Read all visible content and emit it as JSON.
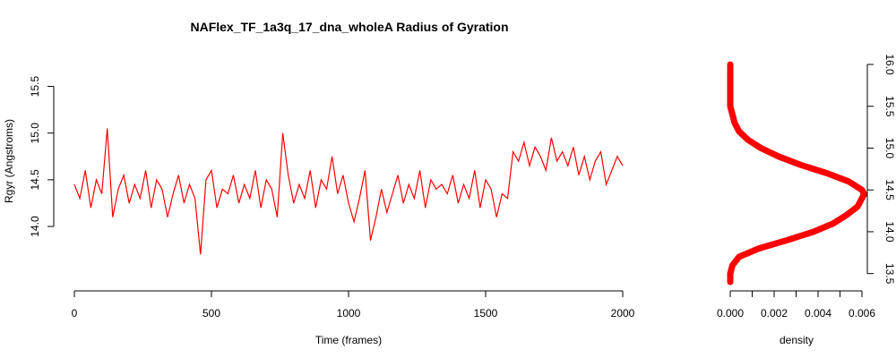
{
  "chart_data": [
    {
      "type": "line",
      "title": "NAFlex_TF_1a3q_17_dna_wholeA Radius of Gyration",
      "xlabel": "Time (frames)",
      "ylabel": "Rgyr (Angstroms)",
      "xlim": [
        0,
        2000
      ],
      "ylim": [
        13.55,
        15.85
      ],
      "x_ticks": [
        "0",
        "500",
        "1000",
        "1500",
        "2000"
      ],
      "y_ticks": [
        "14.0",
        "14.5",
        "15.0",
        "15.5"
      ],
      "line_color": "#ff0000",
      "grid": false,
      "legend": "none",
      "series": [
        {
          "x": [
            0,
            20,
            40,
            60,
            80,
            100,
            120,
            140,
            160,
            180,
            200,
            220,
            240,
            260,
            280,
            300,
            320,
            340,
            360,
            380,
            400,
            420,
            440,
            460,
            480,
            500,
            520,
            540,
            560,
            580,
            600,
            620,
            640,
            660,
            680,
            700,
            720,
            740,
            760,
            780,
            800,
            820,
            840,
            860,
            880,
            900,
            920,
            940,
            960,
            980,
            1000,
            1020,
            1040,
            1060,
            1080,
            1100,
            1120,
            1140,
            1160,
            1180,
            1200,
            1220,
            1240,
            1260,
            1280,
            1300,
            1320,
            1340,
            1360,
            1380,
            1400,
            1420,
            1440,
            1460,
            1480,
            1500,
            1520,
            1540,
            1560,
            1580,
            1600,
            1620,
            1640,
            1660,
            1680,
            1700,
            1720,
            1740,
            1760,
            1780,
            1800,
            1820,
            1840,
            1860,
            1880,
            1900,
            1920,
            1940,
            1960,
            1980,
            2000
          ],
          "values": [
            14.45,
            14.3,
            14.6,
            14.2,
            14.5,
            14.35,
            15.05,
            14.1,
            14.4,
            14.55,
            14.25,
            14.45,
            14.3,
            14.6,
            14.2,
            14.5,
            14.4,
            14.1,
            14.35,
            14.55,
            14.25,
            14.45,
            14.3,
            13.7,
            14.5,
            14.6,
            14.2,
            14.4,
            14.35,
            14.55,
            14.25,
            14.45,
            14.3,
            14.6,
            14.2,
            14.5,
            14.4,
            14.1,
            15.0,
            14.55,
            14.25,
            14.45,
            14.3,
            14.6,
            14.2,
            14.5,
            14.4,
            14.75,
            14.35,
            14.55,
            14.25,
            14.05,
            14.3,
            14.6,
            13.85,
            14.1,
            14.4,
            14.15,
            14.35,
            14.55,
            14.25,
            14.45,
            14.3,
            14.6,
            14.2,
            14.5,
            14.4,
            14.45,
            14.35,
            14.55,
            14.25,
            14.45,
            14.3,
            14.6,
            14.2,
            14.5,
            14.4,
            14.1,
            14.35,
            14.3,
            14.8,
            14.7,
            14.9,
            14.65,
            14.85,
            14.75,
            14.6,
            14.95,
            14.7,
            14.8,
            14.65,
            14.85,
            14.55,
            14.75,
            14.5,
            14.7,
            14.8,
            14.45,
            14.6,
            14.75,
            14.65
          ]
        }
      ]
    },
    {
      "type": "line",
      "title": "",
      "xlabel": "density",
      "ylabel": "",
      "xlim": [
        0,
        0.006
      ],
      "ylim": [
        13.4,
        16.0
      ],
      "x_ticks": [
        "0.000",
        "0.002",
        "0.004",
        "0.006"
      ],
      "y_ticks": [
        "13.5",
        "14.0",
        "14.5",
        "15.0",
        "15.5",
        "16.0"
      ],
      "line_color": "#ff0000",
      "grid": false,
      "legend": "none",
      "orientation": "horizontal",
      "series": [
        {
          "y": [
            13.4,
            13.5,
            13.6,
            13.7,
            13.8,
            13.9,
            14.0,
            14.1,
            14.2,
            14.3,
            14.4,
            14.45,
            14.5,
            14.6,
            14.7,
            14.8,
            14.9,
            15.0,
            15.1,
            15.2,
            15.3,
            15.4,
            15.5,
            15.6,
            15.7,
            15.8,
            15.9,
            16.0
          ],
          "values": [
            0.0,
            0.0,
            0.0001,
            0.0004,
            0.0013,
            0.0026,
            0.0038,
            0.0047,
            0.0053,
            0.0058,
            0.006,
            0.0061,
            0.006,
            0.0054,
            0.0044,
            0.0032,
            0.0022,
            0.0014,
            0.0008,
            0.0004,
            0.0002,
            0.0001,
            0.0,
            0.0,
            0.0,
            0.0,
            0.0,
            0.0
          ]
        }
      ]
    }
  ]
}
